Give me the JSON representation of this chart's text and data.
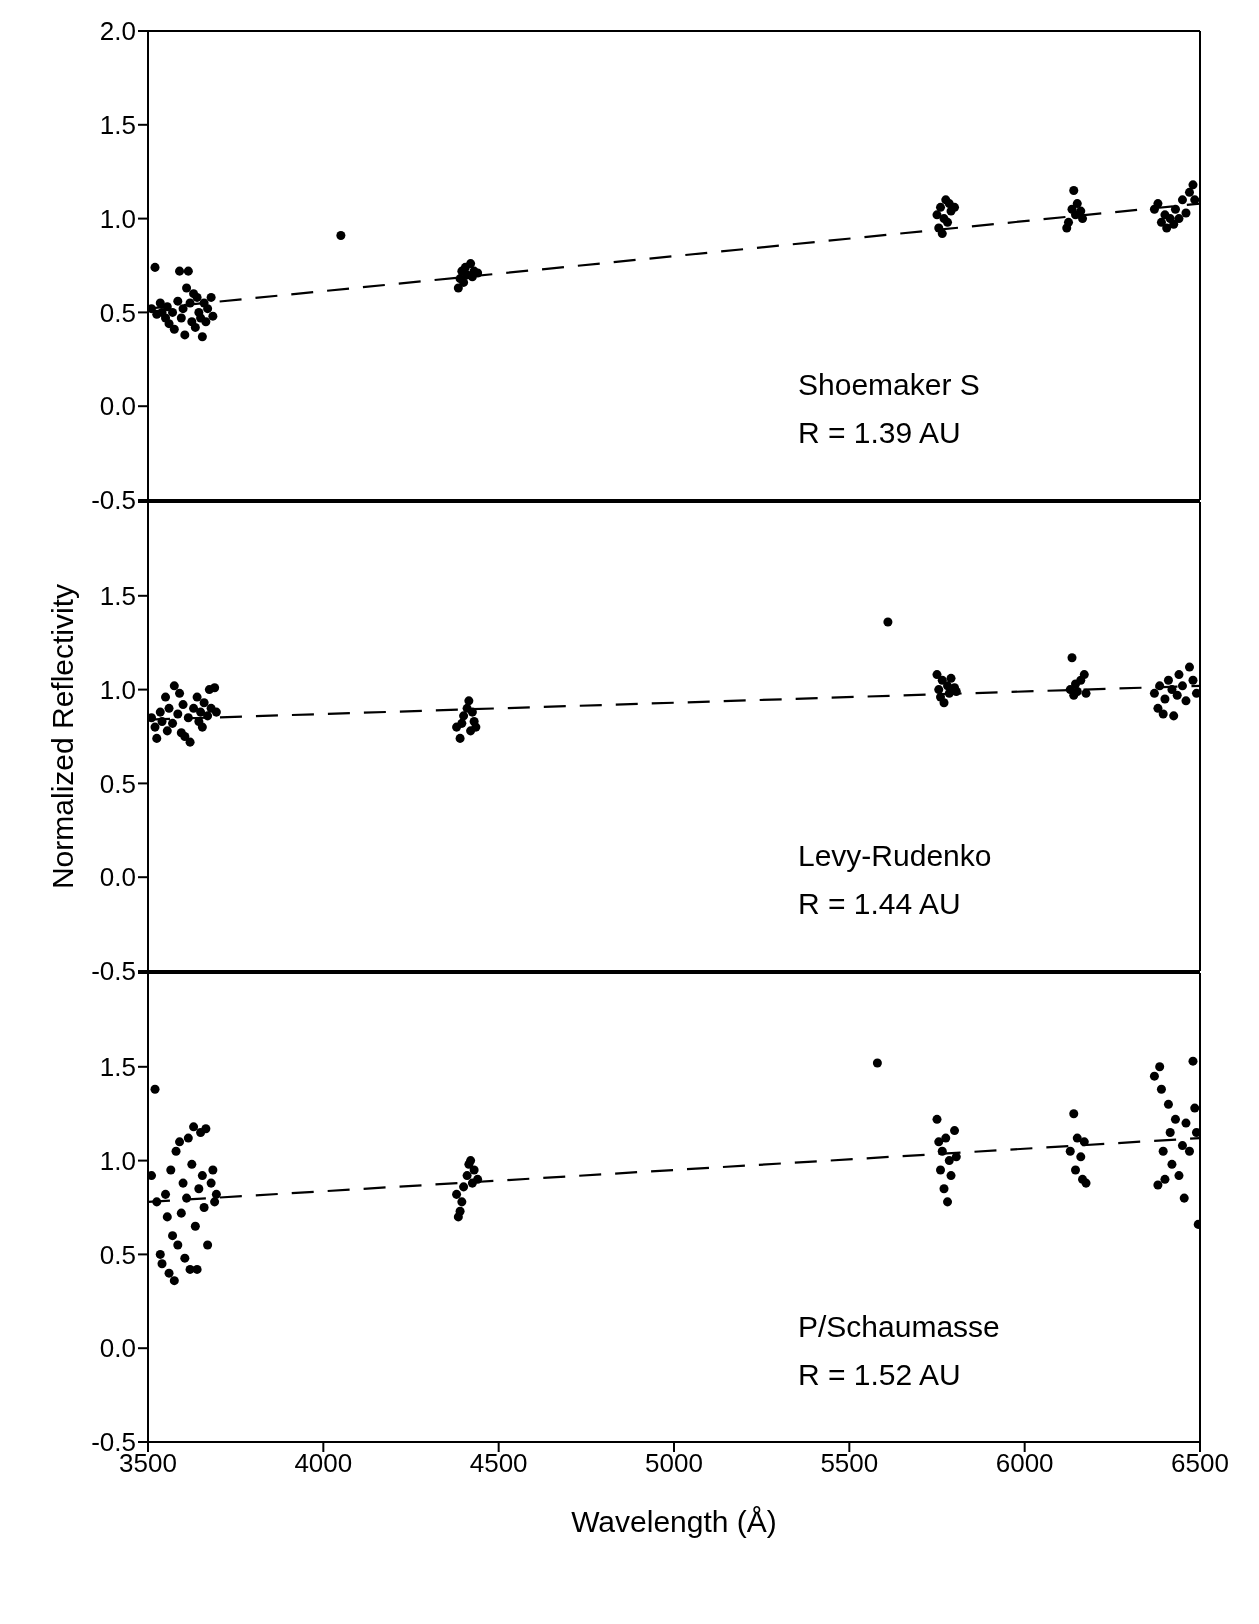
{
  "chart_data": [
    {
      "type": "scatter",
      "marker": "circle",
      "tick_labels": "y",
      "xlim": [
        3500,
        6500
      ],
      "xticks": [
        3500,
        4000,
        4500,
        5000,
        5500,
        6000,
        6500
      ],
      "ylim": [
        -0.5,
        2.0
      ],
      "yticks": [
        {
          "value": -0.5,
          "label": "-0.5"
        },
        {
          "value": 0,
          "label": "0.0"
        },
        {
          "value": 0.5,
          "label": "0.5"
        },
        {
          "value": 1,
          "label": "1.0"
        },
        {
          "value": 1.5,
          "label": "1.5"
        },
        {
          "value": 2,
          "label": "2.0"
        }
      ],
      "annotations": [
        "Shoemaker S",
        "R = 1.39 AU"
      ],
      "series": [
        {
          "color": "#000000",
          "x": [
            3510,
            3520,
            3525,
            3535,
            3540,
            3550,
            3555,
            3560,
            3570,
            3575,
            3585,
            3590,
            3595,
            3600,
            3605,
            3610,
            3615,
            3620,
            3625,
            3630,
            3635,
            3640,
            3645,
            3650,
            3655,
            3660,
            3665,
            3670,
            3680,
            3685,
            4050,
            4385,
            4390,
            4395,
            4400,
            4405,
            4410,
            4420,
            4425,
            4430,
            4440,
            5750,
            5755,
            5760,
            5765,
            5770,
            5775,
            5780,
            5785,
            5790,
            5800,
            6120,
            6125,
            6135,
            6140,
            6145,
            6150,
            6160,
            6165,
            6370,
            6380,
            6390,
            6400,
            6405,
            6415,
            6425,
            6430,
            6440,
            6450,
            6460,
            6470,
            6480,
            6485
          ],
          "values": [
            0.52,
            0.74,
            0.49,
            0.55,
            0.5,
            0.47,
            0.53,
            0.44,
            0.5,
            0.41,
            0.56,
            0.72,
            0.47,
            0.52,
            0.38,
            0.63,
            0.72,
            0.55,
            0.45,
            0.6,
            0.42,
            0.58,
            0.5,
            0.47,
            0.37,
            0.55,
            0.45,
            0.52,
            0.58,
            0.48,
            0.91,
            0.63,
            0.68,
            0.72,
            0.66,
            0.74,
            0.7,
            0.76,
            0.69,
            0.72,
            0.71,
            1.02,
            0.95,
            1.06,
            0.92,
            1.0,
            1.1,
            0.98,
            1.08,
            1.04,
            1.06,
            0.95,
            0.98,
            1.05,
            1.15,
            1.02,
            1.08,
            1.04,
            1.0,
            1.05,
            1.08,
            0.98,
            1.02,
            0.95,
            1.0,
            0.97,
            1.05,
            1.0,
            1.1,
            1.03,
            1.14,
            1.18,
            1.1
          ]
        },
        {
          "type": "line",
          "color": "#000000",
          "line_style": "dashed",
          "x": [
            3500,
            6500
          ],
          "values": [
            0.52,
            1.08
          ],
          "marker": "none"
        }
      ]
    },
    {
      "type": "scatter",
      "marker": "circle",
      "tick_labels": "y",
      "ylabel": "Normalized Reflectivity",
      "xlim": [
        3500,
        6500
      ],
      "xticks": [
        3500,
        4000,
        4500,
        5000,
        5500,
        6000,
        6500
      ],
      "ylim": [
        -0.5,
        2.0
      ],
      "yticks": [
        {
          "value": -0.5,
          "label": "-0.5"
        },
        {
          "value": 0,
          "label": "0.0"
        },
        {
          "value": 0.5,
          "label": "0.5"
        },
        {
          "value": 1,
          "label": "1.0"
        },
        {
          "value": 1.5,
          "label": "1.5"
        },
        {
          "value": 2,
          "label": null
        }
      ],
      "annotations": [
        "Levy-Rudenko",
        "R = 1.44 AU"
      ],
      "series": [
        {
          "color": "#000000",
          "x": [
            3510,
            3520,
            3525,
            3535,
            3540,
            3550,
            3555,
            3560,
            3570,
            3575,
            3585,
            3590,
            3595,
            3600,
            3605,
            3615,
            3620,
            3630,
            3640,
            3645,
            3650,
            3655,
            3660,
            3670,
            3675,
            3680,
            3690,
            3695,
            4380,
            4390,
            4395,
            4400,
            4410,
            4415,
            4420,
            4425,
            4430,
            4435,
            5610,
            5750,
            5755,
            5760,
            5765,
            5770,
            5780,
            5785,
            5790,
            5800,
            5805,
            6130,
            6135,
            6140,
            6145,
            6150,
            6160,
            6170,
            6175,
            6370,
            6380,
            6385,
            6395,
            6400,
            6410,
            6420,
            6425,
            6435,
            6440,
            6450,
            6460,
            6470,
            6480,
            6490
          ],
          "values": [
            0.85,
            0.8,
            0.74,
            0.88,
            0.83,
            0.96,
            0.78,
            0.9,
            0.82,
            1.02,
            0.87,
            0.98,
            0.77,
            0.92,
            0.75,
            0.85,
            0.72,
            0.9,
            0.96,
            0.83,
            0.88,
            0.8,
            0.93,
            0.86,
            1.0,
            0.9,
            1.01,
            0.88,
            0.8,
            0.74,
            0.82,
            0.86,
            0.9,
            0.94,
            0.78,
            0.88,
            0.83,
            0.8,
            1.36,
            1.08,
            1.0,
            0.96,
            1.05,
            0.93,
            1.02,
            0.98,
            1.06,
            1.01,
            0.99,
            1.0,
            1.17,
            0.97,
            1.03,
            0.99,
            1.05,
            1.08,
            0.98,
            0.98,
            0.9,
            1.02,
            0.87,
            0.95,
            1.05,
            1.0,
            0.86,
            0.97,
            1.08,
            1.02,
            0.94,
            1.12,
            1.05,
            0.98
          ]
        },
        {
          "type": "line",
          "color": "#000000",
          "line_style": "dashed",
          "x": [
            3500,
            6500
          ],
          "values": [
            0.84,
            1.02
          ],
          "marker": "none"
        }
      ]
    },
    {
      "type": "scatter",
      "marker": "circle",
      "xlabel": "Wavelength (Å)",
      "xlim": [
        3500,
        6500
      ],
      "xticks": [
        3500,
        4000,
        4500,
        5000,
        5500,
        6000,
        6500
      ],
      "ylim": [
        -0.5,
        2.0
      ],
      "yticks": [
        {
          "value": -0.5,
          "label": "-0.5"
        },
        {
          "value": 0,
          "label": "0.0"
        },
        {
          "value": 0.5,
          "label": "0.5"
        },
        {
          "value": 1,
          "label": "1.0"
        },
        {
          "value": 1.5,
          "label": "1.5"
        },
        {
          "value": 2,
          "label": null
        }
      ],
      "annotations": [
        "P/Schaumasse",
        "R = 1.52 AU"
      ],
      "series": [
        {
          "color": "#000000",
          "x": [
            3510,
            3520,
            3525,
            3535,
            3540,
            3550,
            3555,
            3560,
            3565,
            3570,
            3575,
            3580,
            3585,
            3590,
            3595,
            3600,
            3605,
            3610,
            3615,
            3620,
            3625,
            3630,
            3635,
            3640,
            3645,
            3650,
            3655,
            3660,
            3665,
            3670,
            3680,
            3685,
            3690,
            3695,
            4380,
            4385,
            4390,
            4395,
            4400,
            4410,
            4415,
            4420,
            4425,
            4430,
            4440,
            5580,
            5750,
            5755,
            5760,
            5765,
            5770,
            5775,
            5780,
            5785,
            5790,
            5800,
            5805,
            6130,
            6140,
            6145,
            6150,
            6160,
            6165,
            6170,
            6175,
            6370,
            6380,
            6385,
            6390,
            6395,
            6400,
            6410,
            6415,
            6420,
            6430,
            6440,
            6450,
            6455,
            6460,
            6470,
            6480,
            6485,
            6490,
            6495
          ],
          "values": [
            0.92,
            1.38,
            0.78,
            0.5,
            0.45,
            0.82,
            0.7,
            0.4,
            0.95,
            0.6,
            0.36,
            1.05,
            0.55,
            1.1,
            0.72,
            0.88,
            0.48,
            0.8,
            1.12,
            0.42,
            0.98,
            1.18,
            0.65,
            0.42,
            0.85,
            1.15,
            0.92,
            0.75,
            1.17,
            0.55,
            0.88,
            0.95,
            0.78,
            0.82,
            0.82,
            0.7,
            0.73,
            0.78,
            0.86,
            0.92,
            0.98,
            1.0,
            0.88,
            0.95,
            0.9,
            1.52,
            1.22,
            1.1,
            0.95,
            1.05,
            0.85,
            1.12,
            0.78,
            1.0,
            0.92,
            1.16,
            1.02,
            1.05,
            1.25,
            0.95,
            1.12,
            1.02,
            0.9,
            1.1,
            0.88,
            1.45,
            0.87,
            1.5,
            1.38,
            1.05,
            0.9,
            1.3,
            1.15,
            0.98,
            1.22,
            0.92,
            1.08,
            0.8,
            1.2,
            1.05,
            1.53,
            1.28,
            1.15,
            0.66
          ]
        },
        {
          "type": "line",
          "color": "#000000",
          "line_style": "dashed",
          "x": [
            3500,
            6500
          ],
          "values": [
            0.78,
            1.12
          ],
          "marker": "none"
        }
      ]
    }
  ]
}
